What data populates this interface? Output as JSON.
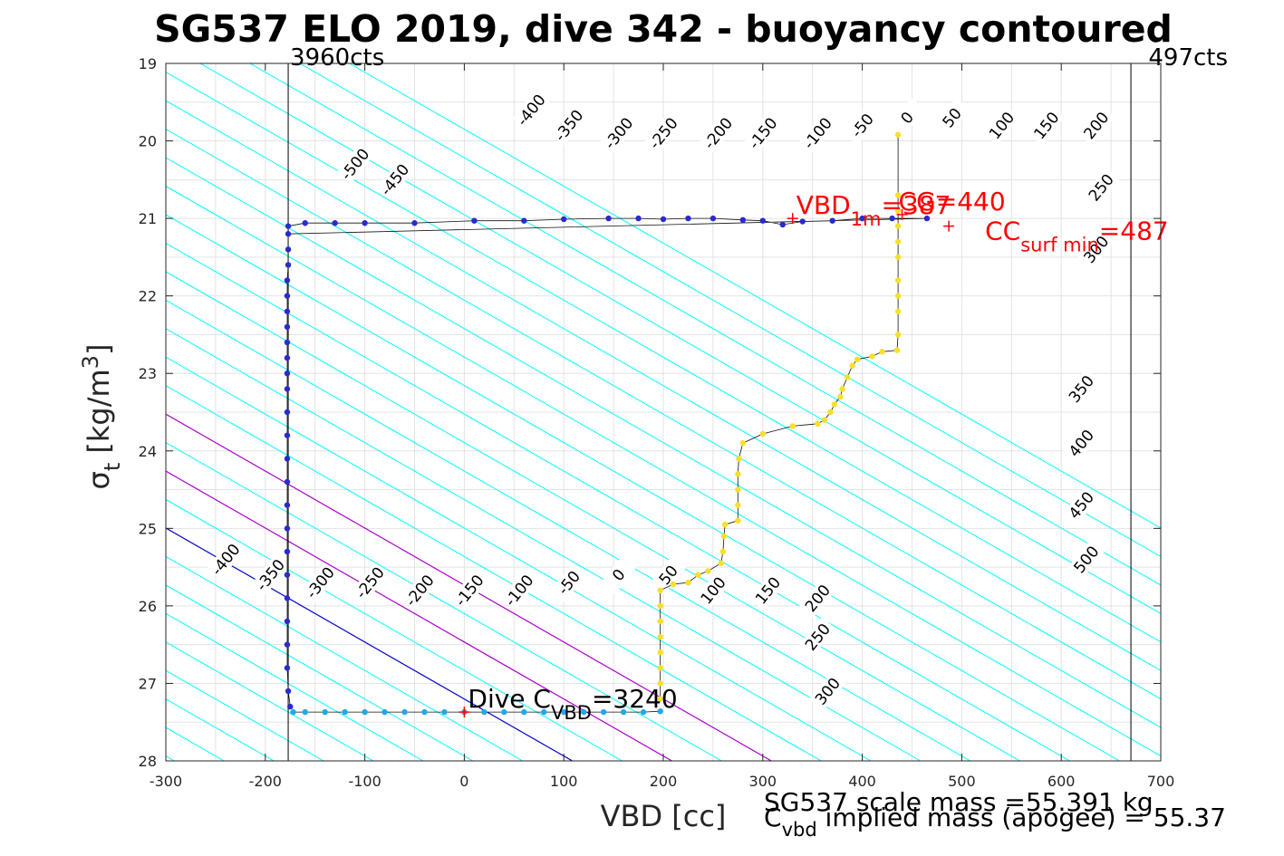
{
  "chart_data": {
    "type": "scatter",
    "title": "SG537 ELO 2019, dive 342 - buoyancy contoured",
    "xlabel": "VBD [cc]",
    "ylabel": "σ_t [kg/m^3]",
    "ylabel_parts": {
      "sigma": "σ",
      "sub": "t",
      "text": " [kg/m",
      "sup": "3",
      "close": "]"
    },
    "xlim": [
      -300,
      700
    ],
    "ylim": [
      19,
      28
    ],
    "y_reversed": true,
    "grid": true,
    "x_ticks": [
      "-300",
      "-200",
      "-100",
      "0",
      "100",
      "200",
      "300",
      "400",
      "500",
      "600",
      "700"
    ],
    "y_ticks": [
      "19",
      "20",
      "21",
      "22",
      "23",
      "24",
      "25",
      "26",
      "27",
      "28"
    ],
    "vertical_lines": [
      {
        "x": -177,
        "label": "3960cts"
      },
      {
        "x": 670,
        "label": "497cts"
      }
    ],
    "buoyancy_contours": {
      "slope_vbd_per_sigma": 136,
      "anchor_sigma": 27.4,
      "anchor_vbd_zero": 27,
      "step": 50,
      "offsets": [
        -800,
        -750,
        -700,
        -650,
        -600,
        -550,
        -500,
        -450,
        -400,
        -350,
        -300,
        -250,
        -200,
        -150,
        -100,
        -50,
        0,
        50,
        100,
        150,
        200,
        250,
        300,
        350,
        400,
        450,
        500,
        550,
        600,
        650,
        700,
        750,
        800,
        850,
        900,
        950,
        1000
      ],
      "colors": {
        "default": "#00ffff",
        "zero": "#0000cc",
        "cg": "#aa00cc"
      },
      "cg_offsets": [
        100,
        200
      ]
    },
    "contour_labels": [
      {
        "text": "-500",
        "vbd": -110,
        "sigma": 20.3
      },
      {
        "text": "-450",
        "vbd": -70,
        "sigma": 20.5
      },
      {
        "text": "-400",
        "vbd": 67,
        "sigma": 19.6
      },
      {
        "text": "-350",
        "vbd": 105,
        "sigma": 19.8
      },
      {
        "text": "-300",
        "vbd": 155,
        "sigma": 19.9
      },
      {
        "text": "-250",
        "vbd": 200,
        "sigma": 19.9
      },
      {
        "text": "-200",
        "vbd": 255,
        "sigma": 19.9
      },
      {
        "text": "-150",
        "vbd": 300,
        "sigma": 19.9
      },
      {
        "text": "-100",
        "vbd": 355,
        "sigma": 19.9
      },
      {
        "text": "-50",
        "vbd": 400,
        "sigma": 19.8
      },
      {
        "text": "0",
        "vbd": 445,
        "sigma": 19.7
      },
      {
        "text": "50",
        "vbd": 490,
        "sigma": 19.7
      },
      {
        "text": "100",
        "vbd": 540,
        "sigma": 19.8
      },
      {
        "text": "150",
        "vbd": 585,
        "sigma": 19.8
      },
      {
        "text": "200",
        "vbd": 635,
        "sigma": 19.8
      },
      {
        "text": "250",
        "vbd": 640,
        "sigma": 20.6
      },
      {
        "text": "300",
        "vbd": 635,
        "sigma": 21.4
      },
      {
        "text": "350",
        "vbd": 620,
        "sigma": 23.2
      },
      {
        "text": "400",
        "vbd": 620,
        "sigma": 23.9
      },
      {
        "text": "450",
        "vbd": 620,
        "sigma": 24.7
      },
      {
        "text": "500",
        "vbd": 625,
        "sigma": 25.4
      },
      {
        "text": "-400",
        "vbd": -240,
        "sigma": 25.4
      },
      {
        "text": "-350",
        "vbd": -195,
        "sigma": 25.6
      },
      {
        "text": "-300",
        "vbd": -145,
        "sigma": 25.7
      },
      {
        "text": "-250",
        "vbd": -95,
        "sigma": 25.7
      },
      {
        "text": "-200",
        "vbd": -45,
        "sigma": 25.8
      },
      {
        "text": "-150",
        "vbd": 5,
        "sigma": 25.8
      },
      {
        "text": "-100",
        "vbd": 55,
        "sigma": 25.8
      },
      {
        "text": "-50",
        "vbd": 105,
        "sigma": 25.7
      },
      {
        "text": "0",
        "vbd": 155,
        "sigma": 25.6
      },
      {
        "text": "50",
        "vbd": 205,
        "sigma": 25.6
      },
      {
        "text": "100",
        "vbd": 250,
        "sigma": 25.8
      },
      {
        "text": "150",
        "vbd": 305,
        "sigma": 25.8
      },
      {
        "text": "200",
        "vbd": 355,
        "sigma": 25.9
      },
      {
        "text": "250",
        "vbd": 355,
        "sigma": 26.4
      },
      {
        "text": "300",
        "vbd": 365,
        "sigma": 27.1
      }
    ],
    "series": [
      {
        "name": "",
        "color": "#2a2ad0",
        "points": [
          [
            -177,
            21.1
          ],
          [
            -160,
            21.06
          ],
          [
            -130,
            21.06
          ],
          [
            -100,
            21.06
          ],
          [
            -50,
            21.06
          ],
          [
            10,
            21.03
          ],
          [
            60,
            21.03
          ],
          [
            100,
            21.01
          ],
          [
            145,
            21.0
          ],
          [
            175,
            21.0
          ],
          [
            200,
            21.01
          ],
          [
            225,
            21.0
          ],
          [
            250,
            21.0
          ],
          [
            280,
            21.02
          ],
          [
            300,
            21.03
          ],
          [
            320,
            21.08
          ],
          [
            340,
            21.04
          ],
          [
            370,
            21.03
          ],
          [
            400,
            21.0
          ],
          [
            430,
            21.0
          ],
          [
            465,
            21.0
          ],
          [
            -177,
            21.2
          ],
          [
            -177,
            21.4
          ],
          [
            -177,
            21.6
          ],
          [
            -178,
            21.8
          ],
          [
            -178,
            22.0
          ],
          [
            -178,
            22.2
          ],
          [
            -178,
            22.4
          ],
          [
            -178,
            22.6
          ],
          [
            -178,
            22.8
          ],
          [
            -178,
            23.0
          ],
          [
            -178,
            23.2
          ],
          [
            -178,
            23.5
          ],
          [
            -178,
            23.8
          ],
          [
            -178,
            24.1
          ],
          [
            -178,
            24.4
          ],
          [
            -178,
            24.7
          ],
          [
            -178,
            25.0
          ],
          [
            -178,
            25.3
          ],
          [
            -178,
            25.6
          ],
          [
            -178,
            25.9
          ],
          [
            -178,
            26.2
          ],
          [
            -178,
            26.5
          ],
          [
            -178,
            26.8
          ],
          [
            -177,
            27.1
          ],
          [
            -175,
            27.3
          ]
        ]
      },
      {
        "name": "",
        "color": "#22a8e8",
        "points": [
          [
            -172,
            27.37
          ],
          [
            -160,
            27.37
          ],
          [
            -140,
            27.37
          ],
          [
            -120,
            27.37
          ],
          [
            -100,
            27.37
          ],
          [
            -80,
            27.37
          ],
          [
            -60,
            27.37
          ],
          [
            -40,
            27.37
          ],
          [
            -20,
            27.37
          ],
          [
            0,
            27.37
          ],
          [
            20,
            27.37
          ],
          [
            40,
            27.37
          ],
          [
            60,
            27.37
          ],
          [
            80,
            27.37
          ],
          [
            100,
            27.37
          ],
          [
            120,
            27.37
          ],
          [
            140,
            27.37
          ],
          [
            160,
            27.37
          ],
          [
            180,
            27.37
          ],
          [
            197,
            27.36
          ]
        ]
      },
      {
        "name": "",
        "color": "#f7e02a",
        "points": [
          [
            197,
            27.2
          ],
          [
            197,
            27.0
          ],
          [
            197,
            26.8
          ],
          [
            197,
            26.6
          ],
          [
            197,
            26.4
          ],
          [
            197,
            26.2
          ],
          [
            197,
            26.0
          ],
          [
            197,
            25.8
          ],
          [
            210,
            25.72
          ],
          [
            225,
            25.7
          ],
          [
            235,
            25.6
          ],
          [
            245,
            25.55
          ],
          [
            258,
            25.45
          ],
          [
            260,
            25.3
          ],
          [
            261,
            25.1
          ],
          [
            262,
            24.95
          ],
          [
            275,
            24.9
          ],
          [
            275,
            24.7
          ],
          [
            275,
            24.5
          ],
          [
            275,
            24.3
          ],
          [
            276,
            24.1
          ],
          [
            280,
            23.9
          ],
          [
            300,
            23.78
          ],
          [
            330,
            23.68
          ],
          [
            355,
            23.65
          ],
          [
            362,
            23.6
          ],
          [
            368,
            23.5
          ],
          [
            372,
            23.4
          ],
          [
            378,
            23.3
          ],
          [
            380,
            23.2
          ],
          [
            385,
            23.05
          ],
          [
            390,
            22.9
          ],
          [
            395,
            22.82
          ],
          [
            410,
            22.78
          ],
          [
            420,
            22.72
          ],
          [
            435,
            22.7
          ],
          [
            436,
            22.5
          ],
          [
            436,
            22.2
          ],
          [
            436,
            22.0
          ],
          [
            436,
            21.8
          ],
          [
            436,
            21.5
          ],
          [
            436,
            21.3
          ],
          [
            436,
            21.1
          ],
          [
            436,
            20.9
          ],
          [
            436,
            20.7
          ],
          [
            436,
            19.92
          ]
        ]
      }
    ],
    "markers": [
      {
        "label_main": "Dive C",
        "label_sub": "VBD",
        "label_tail": "=3240",
        "vbd": 0,
        "sigma": 27.37,
        "color": "#ff0000"
      },
      {
        "label_main": "VBD",
        "label_sub": "1m",
        "label_tail": "=387",
        "vbd": 330,
        "sigma": 21.0,
        "color": "#ff0000"
      },
      {
        "label_main": "CG",
        "label_sub": "",
        "label_tail": "=440",
        "vbd": 440,
        "sigma": 20.95,
        "color": "#ff0000"
      },
      {
        "label_main": "CC",
        "label_sub": "surf min",
        "label_tail": "=487",
        "vbd": 487,
        "sigma": 21.1,
        "color": "#ff0000"
      }
    ],
    "annotation_lines": [
      "SG537 scale mass =55.391 kg",
      "C  implied mass (apogee) = 55.37"
    ],
    "annotation_sub": "vbd"
  }
}
